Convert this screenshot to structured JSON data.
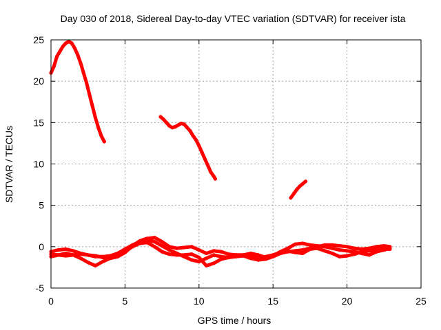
{
  "chart_data": {
    "type": "scatter",
    "title": "Day 030 of 2018, Sidereal Day-to-day VTEC variation (SDTVAR) for receiver ista",
    "xlabel": "GPS time / hours",
    "ylabel": "SDTVAR / TECUs",
    "xlim": [
      0,
      25
    ],
    "ylim": [
      -5,
      25
    ],
    "x_ticks": [
      "0",
      "5",
      "10",
      "15",
      "20",
      "25"
    ],
    "y_ticks": [
      "-5",
      "0",
      "5",
      "10",
      "15",
      "20",
      "25"
    ],
    "grid": true,
    "series_color": "#ff0000",
    "series": [
      {
        "name": "track-1",
        "x": [
          0.0,
          0.2,
          0.4,
          0.6,
          0.8,
          1.0,
          1.2,
          1.4,
          1.6,
          1.8,
          2.0,
          2.2,
          2.4,
          2.6,
          2.8,
          3.0,
          3.2,
          3.4,
          3.6
        ],
        "y": [
          21.0,
          21.8,
          23.0,
          23.6,
          24.2,
          24.6,
          24.8,
          24.6,
          24.0,
          23.2,
          22.2,
          21.0,
          19.8,
          18.4,
          17.0,
          15.6,
          14.4,
          13.4,
          12.7
        ]
      },
      {
        "name": "track-2",
        "x": [
          7.4,
          7.6,
          7.8,
          8.0,
          8.2,
          8.4,
          8.6,
          8.8,
          9.0,
          9.2,
          9.4,
          9.6,
          9.8,
          10.0,
          10.2,
          10.4,
          10.6,
          10.8,
          11.0,
          11.1
        ],
        "y": [
          15.7,
          15.4,
          15.0,
          14.6,
          14.4,
          14.5,
          14.7,
          14.9,
          14.8,
          14.4,
          14.0,
          13.4,
          12.9,
          12.2,
          11.4,
          10.6,
          9.8,
          9.0,
          8.5,
          8.2
        ]
      },
      {
        "name": "track-3",
        "x": [
          16.2,
          16.4,
          16.6,
          16.8,
          17.0,
          17.2
        ],
        "y": [
          5.9,
          6.4,
          6.9,
          7.3,
          7.6,
          7.9
        ]
      },
      {
        "name": "baseline-a",
        "x": [
          0.0,
          0.5,
          1.0,
          1.5,
          2.0,
          2.5,
          3.0,
          3.5,
          4.0,
          4.5,
          5.0,
          5.5,
          6.0,
          6.5,
          7.0,
          7.5,
          8.0,
          8.5,
          9.0,
          9.5,
          10.0,
          10.5,
          11.0,
          11.5,
          12.0,
          12.5,
          13.0,
          13.5,
          14.0,
          14.5,
          15.0,
          15.5,
          16.0,
          16.5,
          17.0,
          17.5,
          18.0,
          18.5,
          19.0,
          19.5,
          20.0,
          20.5,
          21.0,
          21.5,
          22.0,
          22.5,
          22.9
        ],
        "y": [
          -0.6,
          -0.4,
          -0.3,
          -0.5,
          -0.8,
          -1.0,
          -1.2,
          -1.2,
          -1.1,
          -0.8,
          -0.3,
          0.2,
          0.6,
          0.8,
          0.6,
          0.1,
          -0.4,
          -0.8,
          -1.2,
          -1.6,
          -1.8,
          -1.4,
          -1.0,
          -1.2,
          -1.3,
          -1.2,
          -1.1,
          -1.4,
          -1.6,
          -1.5,
          -1.2,
          -0.8,
          -0.6,
          -0.5,
          -0.4,
          -0.2,
          0.0,
          0.2,
          0.2,
          0.1,
          0.0,
          -0.2,
          -0.3,
          -0.2,
          0.0,
          0.1,
          0.0
        ]
      },
      {
        "name": "baseline-b",
        "x": [
          0.0,
          0.5,
          1.0,
          1.5,
          2.0,
          2.5,
          3.0,
          3.5,
          4.0,
          4.5,
          5.0,
          5.5,
          6.0,
          6.5,
          7.0,
          7.5,
          8.0,
          8.5,
          9.0,
          9.5,
          10.0,
          10.5,
          11.0,
          11.5,
          12.0,
          12.5,
          13.0,
          13.5,
          14.0,
          14.5,
          15.0,
          15.5,
          16.0,
          16.5,
          17.0,
          17.5,
          18.0,
          18.5,
          19.0,
          19.5,
          20.0,
          20.5,
          21.0,
          21.5,
          22.0,
          22.5,
          22.9
        ],
        "y": [
          -1.2,
          -1.0,
          -0.8,
          -1.0,
          -1.4,
          -1.9,
          -2.3,
          -1.8,
          -1.4,
          -1.2,
          -0.6,
          0.0,
          0.4,
          0.5,
          0.0,
          -0.6,
          -0.9,
          -1.0,
          -1.0,
          -0.9,
          -1.3,
          -2.3,
          -2.0,
          -1.5,
          -1.3,
          -1.0,
          -1.0,
          -1.2,
          -1.3,
          -1.2,
          -1.0,
          -0.7,
          -0.5,
          -0.7,
          -0.8,
          -0.3,
          -0.2,
          -0.5,
          -0.8,
          -1.2,
          -1.1,
          -0.9,
          -0.6,
          -0.5,
          -0.4,
          -0.3,
          -0.3
        ]
      },
      {
        "name": "baseline-c",
        "x": [
          0.0,
          0.5,
          1.0,
          1.5,
          2.0,
          2.5,
          3.0,
          3.5,
          4.0,
          4.5,
          5.0,
          5.5,
          6.0,
          6.5,
          7.0,
          7.5,
          8.0,
          8.5,
          9.0,
          9.5,
          10.0,
          10.5,
          11.0,
          11.5,
          12.0,
          12.5,
          13.0,
          13.5,
          14.0,
          14.5,
          15.0,
          15.5,
          16.0,
          16.5,
          17.0,
          17.5,
          18.0,
          18.5,
          19.0,
          19.5,
          20.0,
          20.5,
          21.0,
          21.5,
          22.0,
          22.5,
          22.9
        ],
        "y": [
          -0.9,
          -1.0,
          -1.1,
          -1.0,
          -0.9,
          -1.0,
          -1.1,
          -1.3,
          -1.4,
          -1.2,
          -0.7,
          0.1,
          0.7,
          1.0,
          1.1,
          0.6,
          0.0,
          -0.2,
          -0.1,
          0.0,
          -0.4,
          -0.8,
          -0.5,
          -0.6,
          -0.9,
          -1.0,
          -1.0,
          -0.8,
          -1.0,
          -1.3,
          -1.1,
          -0.6,
          -0.2,
          0.3,
          0.4,
          0.2,
          0.1,
          0.0,
          -0.2,
          -0.4,
          -0.5,
          -0.6,
          -0.8,
          -1.0,
          -0.6,
          -0.4,
          -0.2
        ]
      }
    ]
  }
}
